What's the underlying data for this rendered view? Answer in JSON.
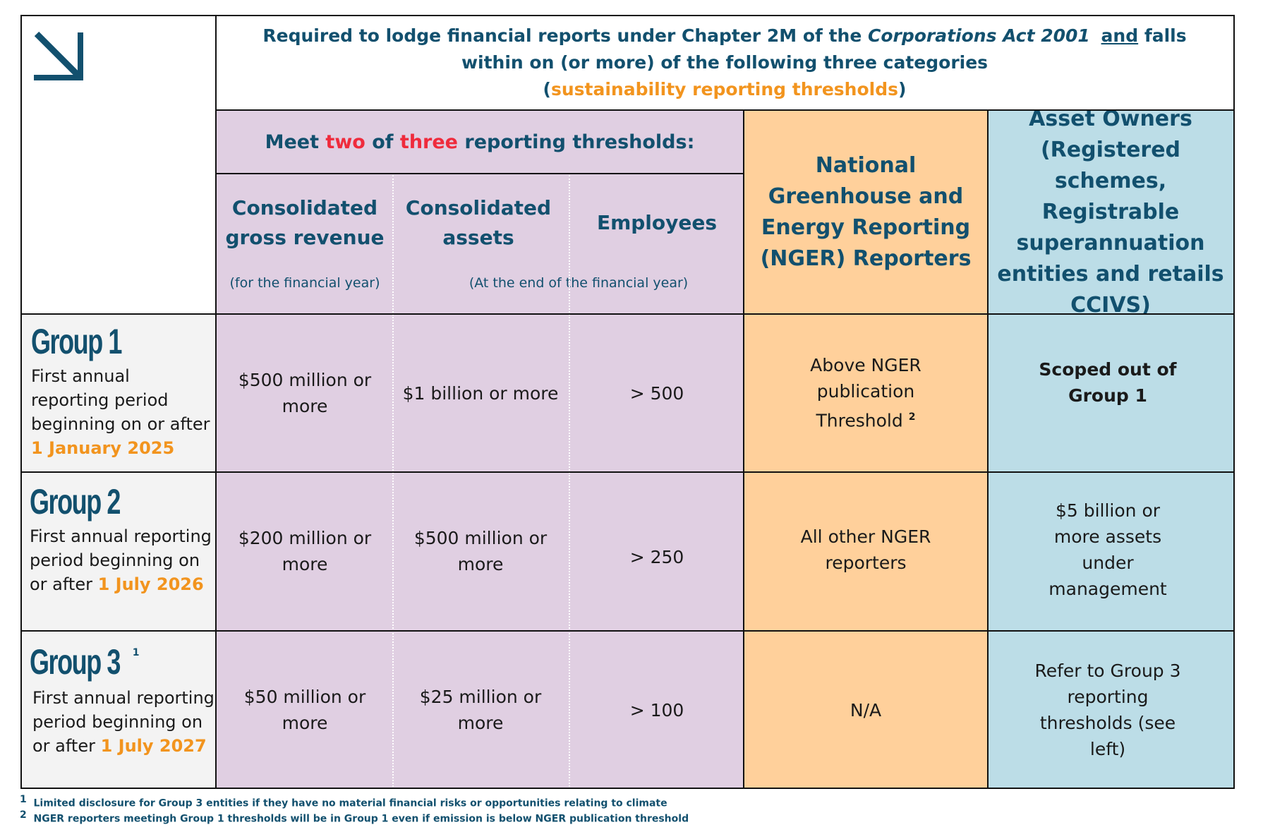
{
  "header": {
    "line1_prefix": "Required to lodge financial reports under Chapter 2M of the ",
    "line1_act": "Corporations Act 2001",
    "line1_and": "and",
    "line1_suffix": " falls",
    "line2": "within on (or more) of the following three categories",
    "line3_open": "(",
    "line3_highlight": "sustainability reporting thresholds",
    "line3_close": ")"
  },
  "thresholds_header": {
    "prefix": "Meet ",
    "two": "two",
    "of": " of ",
    "three": "three",
    "suffix": " reporting thresholds:"
  },
  "columns": {
    "revenue_title": "Consolidated gross revenue",
    "revenue_sub": "(for the financial year)",
    "assets_title": "Consolidated assets",
    "assets_sub": "(At the end of the financial year)",
    "employees_title": "Employees",
    "nger_title": "National Greenhouse and Energy Reporting (NGER) Reporters",
    "owners_title": "Asset Owners (Registered schemes, Registrable superannuation entities and retails CCIVS)"
  },
  "groups": [
    {
      "title": "Group 1",
      "sup": "",
      "desc_prefix": "First annual reporting period beginning on or after ",
      "desc_date": "1 January 2025",
      "revenue": "$500 million or more",
      "assets": "$1 billion or more",
      "employees": "> 500",
      "nger": "Above NGER publication Threshold",
      "nger_sup": "2",
      "owners": "Scoped out of Group 1"
    },
    {
      "title": "Group 2",
      "sup": "",
      "desc_prefix": "First annual reporting period beginning on or after ",
      "desc_date": "1 July 2026",
      "revenue": "$200 million or more",
      "assets": "$500 million or more",
      "employees": "> 250",
      "nger": "All other NGER reporters",
      "nger_sup": "",
      "owners": "$5 billion or more assets under management"
    },
    {
      "title": "Group 3",
      "sup": "1",
      "desc_prefix": "First annual reporting period beginning on or after ",
      "desc_date": "1 July 2027",
      "revenue": "$50 million or more",
      "assets": "$25 million or more",
      "employees": "> 100",
      "nger": "N/A",
      "nger_sup": "",
      "owners": "Refer to Group 3 reporting thresholds (see left)"
    }
  ],
  "footnotes": [
    {
      "mark": "1",
      "text": "Limited disclosure for Group 3 entities if they have no material financial risks or opportunities relating to climate"
    },
    {
      "mark": "2",
      "text": "NGER reporters meetingh Group 1 thresholds will be in Group 1 even if emission is below NGER publication threshold"
    }
  ],
  "colors": {
    "navy": "#12506e",
    "orange": "#f2941e",
    "red": "#ef2b3c",
    "purple_bg": "#e0cfe2",
    "orange_bg": "#ffd09b",
    "blue_bg": "#bcdde7"
  },
  "icons": [
    "arrow-down-right-icon"
  ]
}
